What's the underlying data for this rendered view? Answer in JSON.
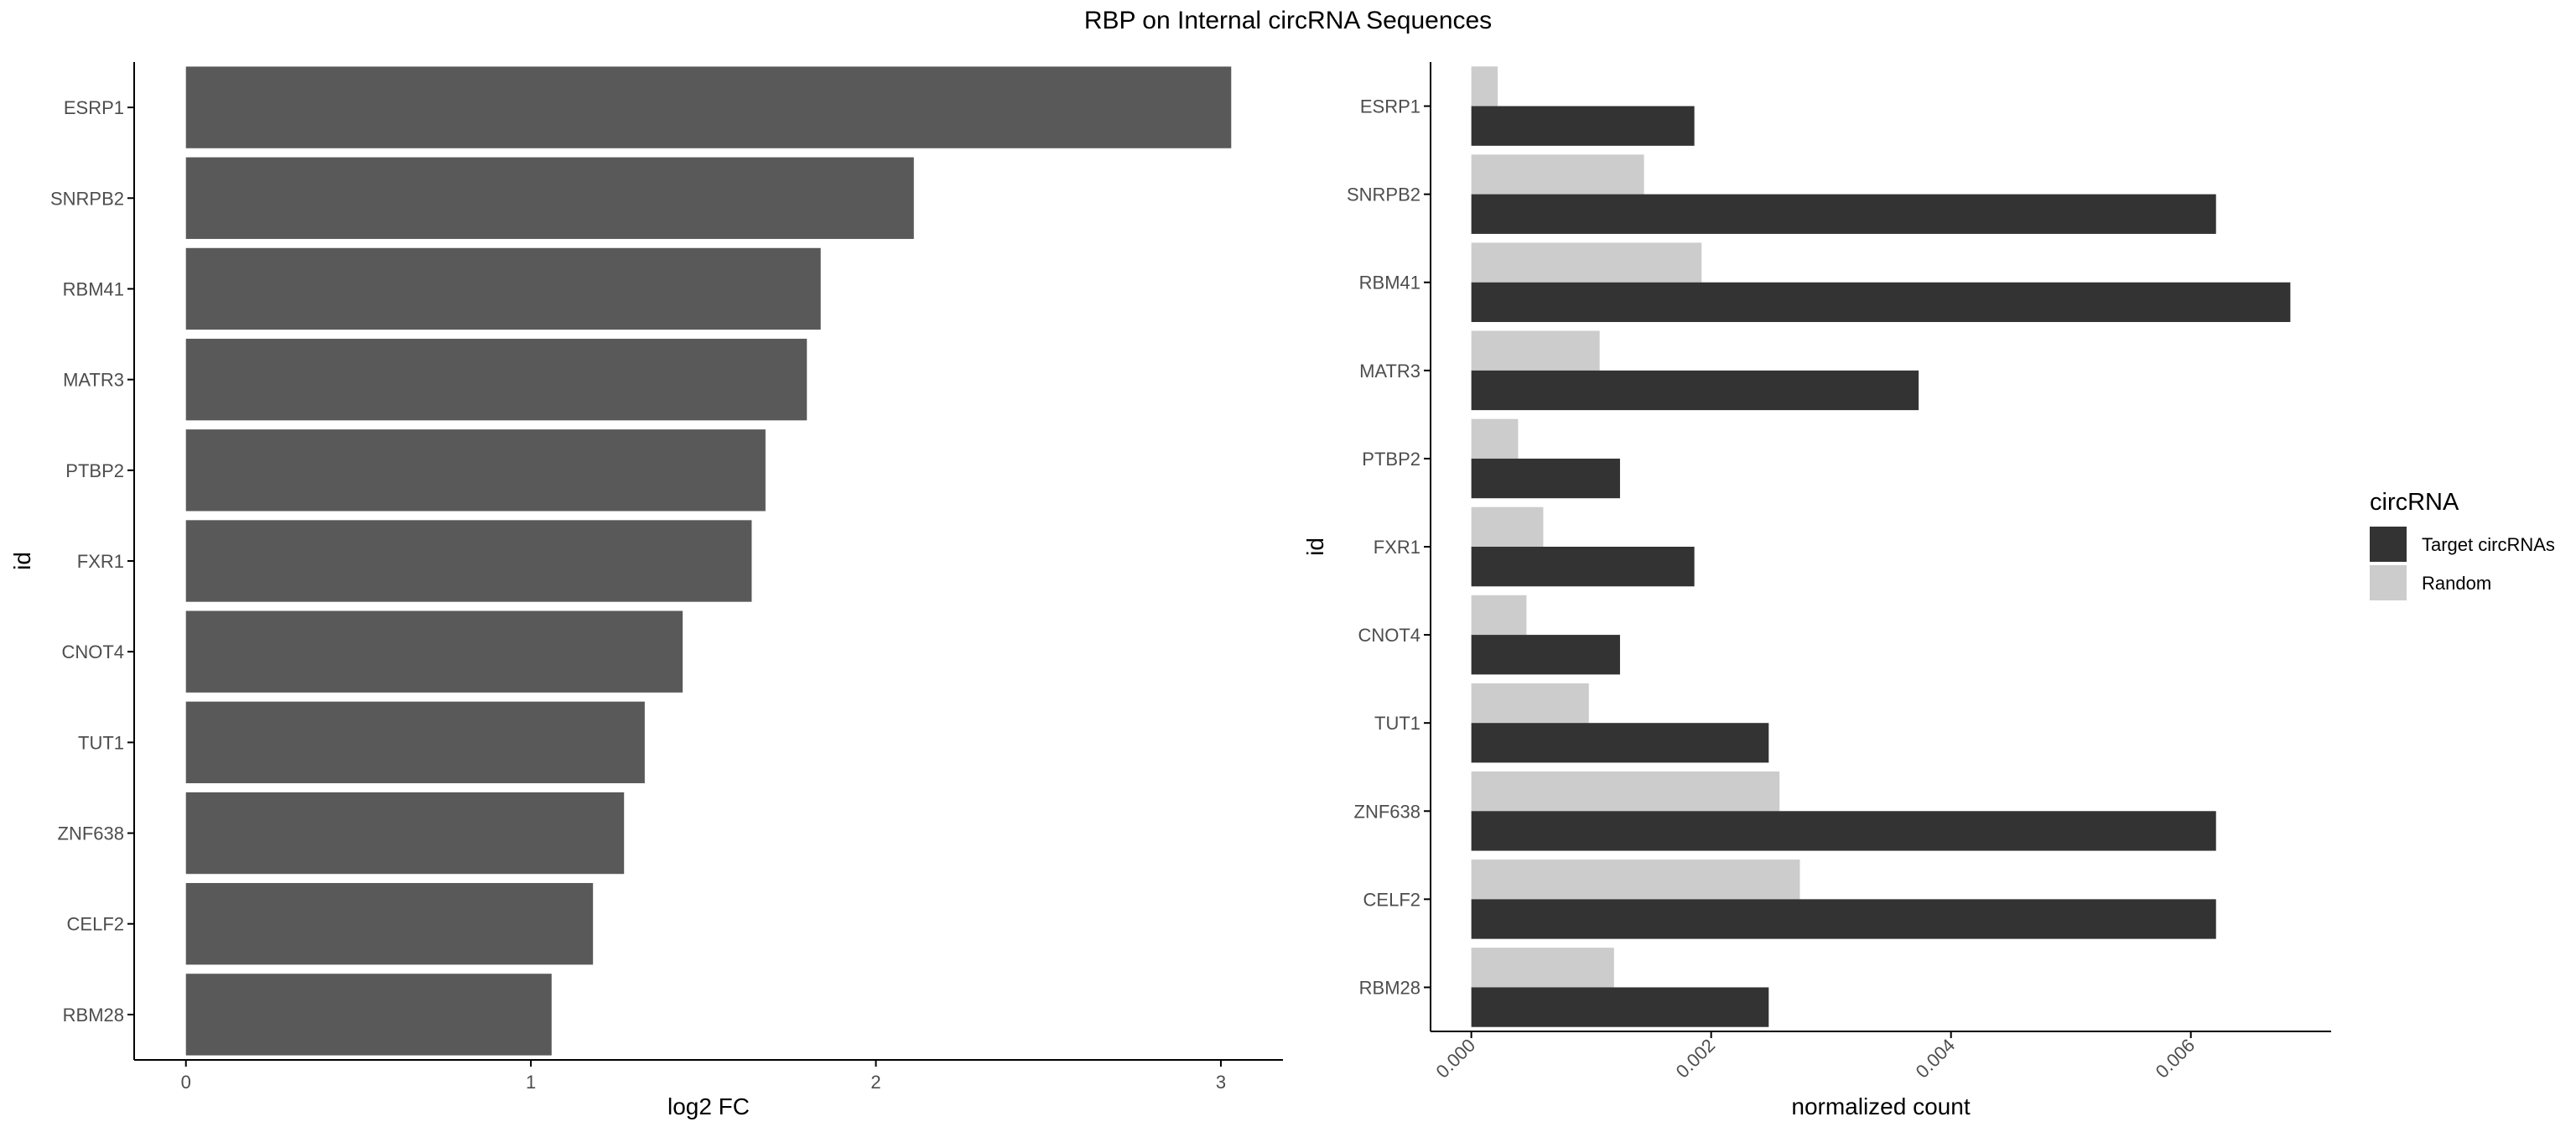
{
  "title": "RBP on Internal circRNA Sequences",
  "colors": {
    "left_bar": "#595959",
    "target": "#333333",
    "random": "#cccccc",
    "axis": "#000000",
    "tick_label": "#4d4d4d"
  },
  "chart_data": [
    {
      "type": "bar",
      "orientation": "horizontal",
      "categories": [
        "ESRP1",
        "SNRPB2",
        "RBM41",
        "MATR3",
        "PTBP2",
        "FXR1",
        "CNOT4",
        "TUT1",
        "ZNF638",
        "CELF2",
        "RBM28"
      ],
      "values": [
        3.03,
        2.11,
        1.84,
        1.8,
        1.68,
        1.64,
        1.44,
        1.33,
        1.27,
        1.18,
        1.06
      ],
      "xlabel": "log2 FC",
      "ylabel": "id",
      "xlim": [
        -0.15,
        3.18
      ],
      "xticks": [
        0,
        1,
        2,
        3
      ],
      "xtick_labels": [
        "0",
        "1",
        "2",
        "3"
      ],
      "grid": false
    },
    {
      "type": "bar",
      "orientation": "horizontal",
      "categories": [
        "ESRP1",
        "SNRPB2",
        "RBM41",
        "MATR3",
        "PTBP2",
        "FXR1",
        "CNOT4",
        "TUT1",
        "ZNF638",
        "CELF2",
        "RBM28"
      ],
      "series": [
        {
          "name": "Target circRNAs",
          "values": [
            0.00186,
            0.00621,
            0.00683,
            0.00373,
            0.00124,
            0.00186,
            0.00124,
            0.00248,
            0.00621,
            0.00621,
            0.00248
          ]
        },
        {
          "name": "Random",
          "values": [
            0.00022,
            0.00144,
            0.00192,
            0.00107,
            0.00039,
            0.0006,
            0.00046,
            0.00098,
            0.00257,
            0.00274,
            0.00119
          ]
        }
      ],
      "xlabel": "normalized count",
      "ylabel": "id",
      "xlim": [
        -0.00034,
        0.00717
      ],
      "xticks": [
        0,
        0.002,
        0.004,
        0.006
      ],
      "xtick_labels": [
        "0.000",
        "0.002",
        "0.004",
        "0.006"
      ],
      "grid": false,
      "legend": {
        "title": "circRNA",
        "placement": "right",
        "entries": [
          "Target circRNAs",
          "Random"
        ]
      }
    }
  ]
}
